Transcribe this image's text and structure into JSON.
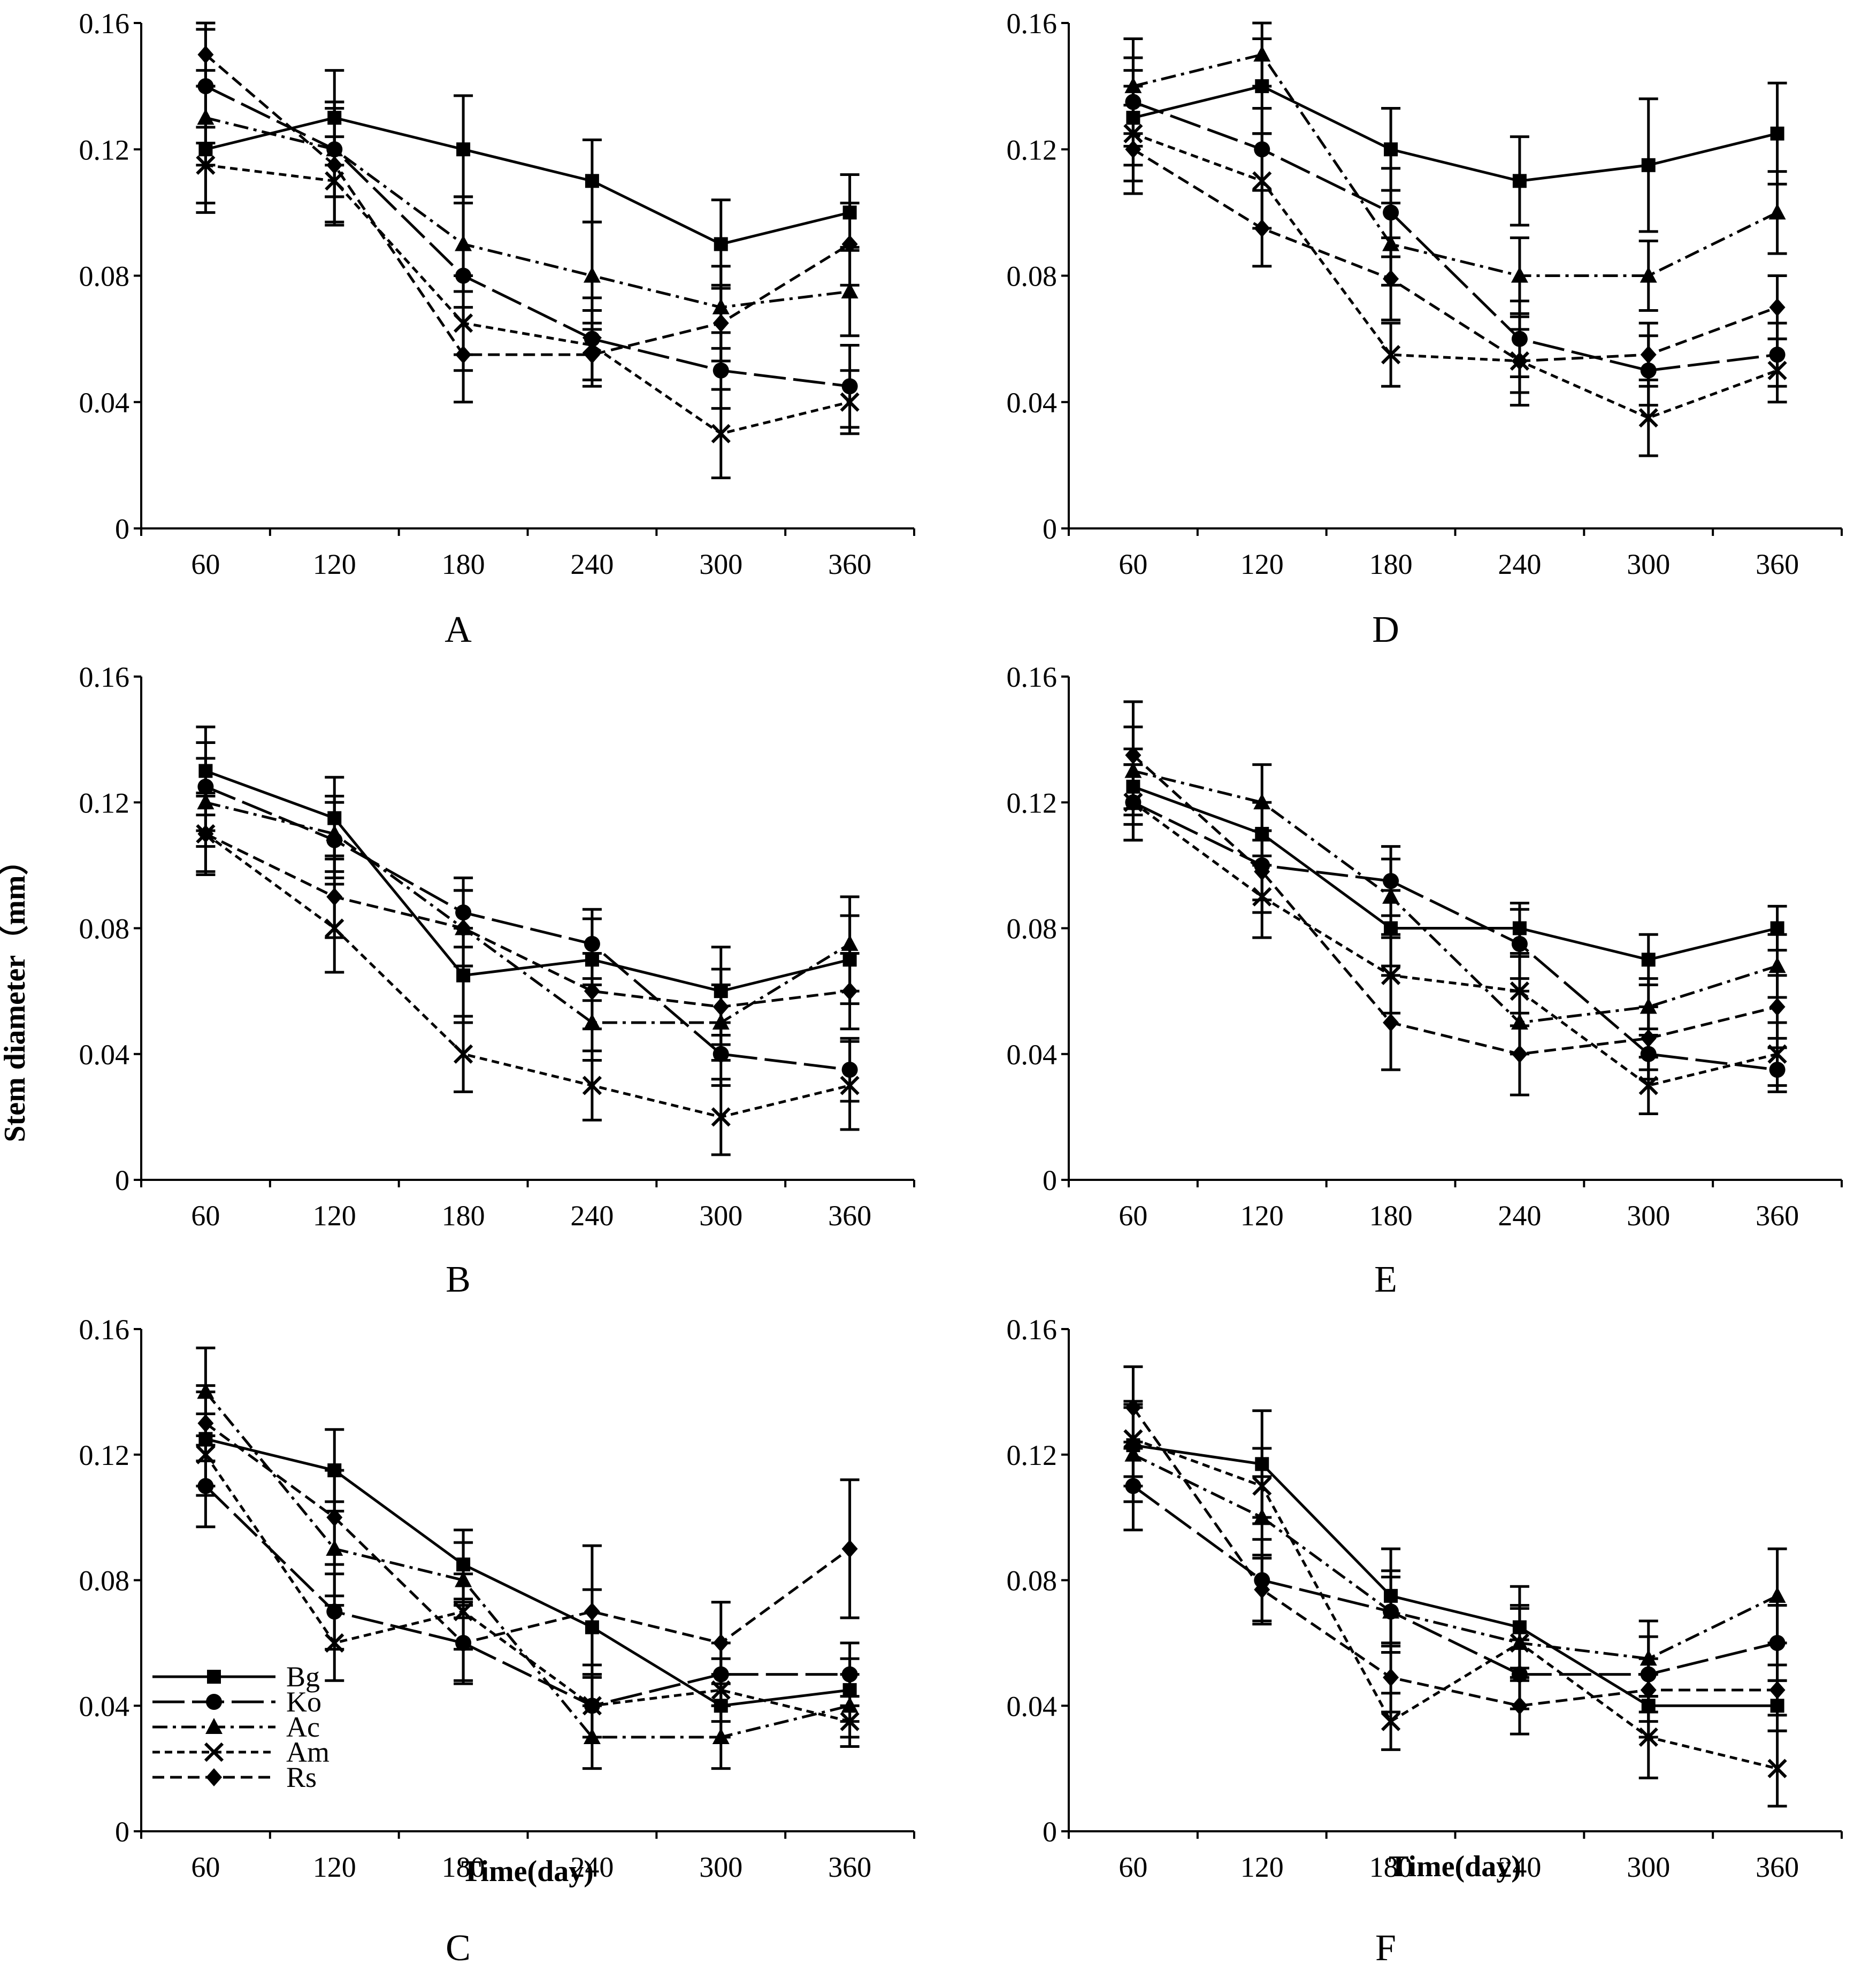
{
  "figure": {
    "ylabel": "Stem diameter（mm）",
    "xlabel": "Time(day)"
  },
  "legend": [
    "Bg",
    "Ko",
    "Ac",
    "Am",
    "Rs"
  ],
  "chart_data": [
    {
      "type": "line",
      "panel": "A",
      "x": [
        60,
        120,
        180,
        240,
        300,
        360
      ],
      "ylim": [
        0,
        0.16
      ],
      "yticks": [
        "0",
        "0.04",
        "0.08",
        "0.12",
        "0.16"
      ],
      "xticks": [
        "60",
        "120",
        "180",
        "240",
        "300",
        "360"
      ],
      "series": [
        {
          "name": "Bg",
          "values": [
            0.12,
            0.13,
            0.12,
            0.11,
            0.09,
            0.1
          ],
          "errors": [
            0.02,
            0.015,
            0.017,
            0.013,
            0.014,
            0.012
          ]
        },
        {
          "name": "Ko",
          "values": [
            0.14,
            0.12,
            0.08,
            0.06,
            0.05,
            0.045
          ],
          "errors": [
            0.018,
            0.015,
            0.025,
            0.013,
            0.012,
            0.013
          ]
        },
        {
          "name": "Ac",
          "values": [
            0.13,
            0.12,
            0.09,
            0.08,
            0.07,
            0.075
          ],
          "errors": [
            0.015,
            0.015,
            0.015,
            0.017,
            0.013,
            0.014
          ]
        },
        {
          "name": "Am",
          "values": [
            0.115,
            0.11,
            0.065,
            0.058,
            0.03,
            0.04
          ],
          "errors": [
            0.012,
            0.014,
            0.015,
            0.011,
            0.014,
            0.01
          ]
        },
        {
          "name": "Rs",
          "values": [
            0.15,
            0.115,
            0.055,
            0.055,
            0.065,
            0.09
          ],
          "errors": [
            0.01,
            0.018,
            0.015,
            0.01,
            0.012,
            0.013
          ]
        }
      ]
    },
    {
      "type": "line",
      "panel": "B",
      "x": [
        60,
        120,
        180,
        240,
        300,
        360
      ],
      "ylim": [
        0,
        0.16
      ],
      "yticks": [
        "0",
        "0.04",
        "0.08",
        "0.12",
        "0.16"
      ],
      "xticks": [
        "60",
        "120",
        "180",
        "240",
        "300",
        "360"
      ],
      "series": [
        {
          "name": "Bg",
          "values": [
            0.13,
            0.115,
            0.065,
            0.07,
            0.06,
            0.07
          ],
          "errors": [
            0.014,
            0.013,
            0.015,
            0.013,
            0.014,
            0.014
          ]
        },
        {
          "name": "Ko",
          "values": [
            0.125,
            0.108,
            0.085,
            0.075,
            0.04,
            0.035
          ],
          "errors": [
            0.014,
            0.012,
            0.011,
            0.011,
            0.01,
            0.01
          ]
        },
        {
          "name": "Ac",
          "values": [
            0.12,
            0.11,
            0.08,
            0.05,
            0.05,
            0.075
          ],
          "errors": [
            0.014,
            0.012,
            0.012,
            0.012,
            0.012,
            0.015
          ]
        },
        {
          "name": "Am",
          "values": [
            0.11,
            0.08,
            0.04,
            0.03,
            0.02,
            0.03
          ],
          "errors": [
            0.013,
            0.014,
            0.012,
            0.011,
            0.012,
            0.014
          ]
        },
        {
          "name": "Rs",
          "values": [
            0.11,
            0.09,
            0.08,
            0.06,
            0.055,
            0.06
          ],
          "errors": [
            0.012,
            0.013,
            0.012,
            0.012,
            0.012,
            0.012
          ]
        }
      ]
    },
    {
      "type": "line",
      "panel": "C",
      "x": [
        60,
        120,
        180,
        240,
        300,
        360
      ],
      "ylim": [
        0,
        0.16
      ],
      "yticks": [
        "0",
        "0.04",
        "0.08",
        "0.12",
        "0.16"
      ],
      "xticks": [
        "60",
        "120",
        "180",
        "240",
        "300",
        "360"
      ],
      "series": [
        {
          "name": "Bg",
          "values": [
            0.125,
            0.115,
            0.085,
            0.065,
            0.04,
            0.045
          ],
          "errors": [
            0.015,
            0.013,
            0.011,
            0.012,
            0.01,
            0.01
          ]
        },
        {
          "name": "Ko",
          "values": [
            0.11,
            0.07,
            0.06,
            0.04,
            0.05,
            0.05
          ],
          "errors": [
            0.013,
            0.012,
            0.013,
            0.01,
            0.01,
            0.01
          ]
        },
        {
          "name": "Ac",
          "values": [
            0.14,
            0.09,
            0.08,
            0.03,
            0.03,
            0.04
          ],
          "errors": [
            0.014,
            0.015,
            0.012,
            0.01,
            0.01,
            0.01
          ]
        },
        {
          "name": "Am",
          "values": [
            0.12,
            0.06,
            0.07,
            0.04,
            0.045,
            0.035
          ],
          "errors": [
            0.013,
            0.012,
            0.012,
            0.01,
            0.01,
            0.008
          ]
        },
        {
          "name": "Rs",
          "values": [
            0.13,
            0.1,
            0.06,
            0.07,
            0.06,
            0.09
          ],
          "errors": [
            0.012,
            0.015,
            0.012,
            0.021,
            0.013,
            0.022
          ]
        }
      ]
    },
    {
      "type": "line",
      "panel": "D",
      "x": [
        60,
        120,
        180,
        240,
        300,
        360
      ],
      "ylim": [
        0,
        0.16
      ],
      "yticks": [
        "0",
        "0.04",
        "0.08",
        "0.12",
        "0.16"
      ],
      "xticks": [
        "60",
        "120",
        "180",
        "240",
        "300",
        "360"
      ],
      "series": [
        {
          "name": "Bg",
          "values": [
            0.13,
            0.14,
            0.12,
            0.11,
            0.115,
            0.125
          ],
          "errors": [
            0.015,
            0.015,
            0.013,
            0.014,
            0.021,
            0.016
          ]
        },
        {
          "name": "Ko",
          "values": [
            0.135,
            0.12,
            0.1,
            0.06,
            0.05,
            0.055
          ],
          "errors": [
            0.014,
            0.013,
            0.014,
            0.012,
            0.011,
            0.01
          ]
        },
        {
          "name": "Ac",
          "values": [
            0.14,
            0.15,
            0.09,
            0.08,
            0.08,
            0.1
          ],
          "errors": [
            0.015,
            0.01,
            0.013,
            0.012,
            0.011,
            0.013
          ]
        },
        {
          "name": "Am",
          "values": [
            0.125,
            0.11,
            0.055,
            0.053,
            0.035,
            0.05
          ],
          "errors": [
            0.015,
            0.015,
            0.01,
            0.01,
            0.012,
            0.01
          ]
        },
        {
          "name": "Rs",
          "values": [
            0.12,
            0.095,
            0.079,
            0.053,
            0.055,
            0.07
          ],
          "errors": [
            0.014,
            0.012,
            0.013,
            0.014,
            0.01,
            0.01
          ]
        }
      ]
    },
    {
      "type": "line",
      "panel": "E",
      "x": [
        60,
        120,
        180,
        240,
        300,
        360
      ],
      "ylim": [
        0,
        0.16
      ],
      "yticks": [
        "0",
        "0.04",
        "0.08",
        "0.12",
        "0.16"
      ],
      "xticks": [
        "60",
        "120",
        "180",
        "240",
        "300",
        "360"
      ],
      "series": [
        {
          "name": "Bg",
          "values": [
            0.125,
            0.11,
            0.08,
            0.08,
            0.07,
            0.08
          ],
          "errors": [
            0.012,
            0.01,
            0.012,
            0.008,
            0.008,
            0.007
          ]
        },
        {
          "name": "Ko",
          "values": [
            0.12,
            0.1,
            0.095,
            0.075,
            0.04,
            0.035
          ],
          "errors": [
            0.012,
            0.011,
            0.011,
            0.011,
            0.008,
            0.007
          ]
        },
        {
          "name": "Ac",
          "values": [
            0.13,
            0.12,
            0.09,
            0.05,
            0.055,
            0.068
          ],
          "errors": [
            0.014,
            0.012,
            0.012,
            0.01,
            0.009,
            0.01
          ]
        },
        {
          "name": "Am",
          "values": [
            0.12,
            0.09,
            0.065,
            0.06,
            0.03,
            0.04
          ],
          "errors": [
            0.012,
            0.013,
            0.012,
            0.011,
            0.009,
            0.01
          ]
        },
        {
          "name": "Rs",
          "values": [
            0.135,
            0.098,
            0.05,
            0.04,
            0.045,
            0.055
          ],
          "errors": [
            0.017,
            0.013,
            0.015,
            0.013,
            0.01,
            0.01
          ]
        }
      ]
    },
    {
      "type": "line",
      "panel": "F",
      "x": [
        60,
        120,
        180,
        240,
        300,
        360
      ],
      "ylim": [
        0,
        0.16
      ],
      "yticks": [
        "0",
        "0.04",
        "0.08",
        "0.12",
        "0.16"
      ],
      "xticks": [
        "60",
        "120",
        "180",
        "240",
        "300",
        "360"
      ],
      "series": [
        {
          "name": "Bg",
          "values": [
            0.123,
            0.117,
            0.075,
            0.065,
            0.04,
            0.04
          ],
          "errors": [
            0.013,
            0.017,
            0.015,
            0.013,
            0.01,
            0.008
          ]
        },
        {
          "name": "Ko",
          "values": [
            0.11,
            0.08,
            0.07,
            0.05,
            0.05,
            0.06
          ],
          "errors": [
            0.014,
            0.013,
            0.013,
            0.011,
            0.012,
            0.012
          ]
        },
        {
          "name": "Ac",
          "values": [
            0.12,
            0.1,
            0.07,
            0.06,
            0.055,
            0.075
          ],
          "errors": [
            0.015,
            0.013,
            0.011,
            0.011,
            0.012,
            0.015
          ]
        },
        {
          "name": "Am",
          "values": [
            0.125,
            0.11,
            0.035,
            0.06,
            0.03,
            0.02
          ],
          "errors": [
            0.012,
            0.012,
            0.009,
            0.012,
            0.013,
            0.012
          ]
        },
        {
          "name": "Rs",
          "values": [
            0.135,
            0.077,
            0.049,
            0.04,
            0.045,
            0.045
          ],
          "errors": [
            0.013,
            0.011,
            0.011,
            0.009,
            0.01,
            0.008
          ]
        }
      ]
    }
  ]
}
